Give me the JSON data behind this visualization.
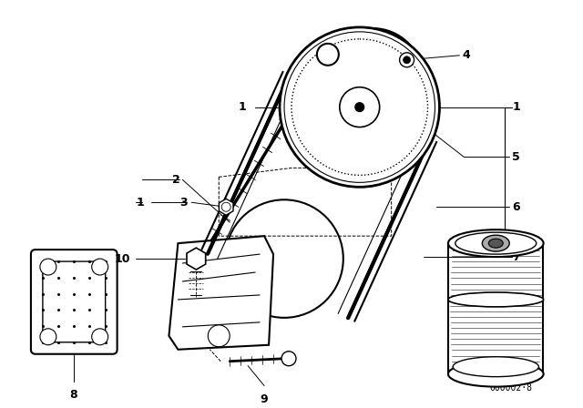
{
  "bg_color": "#ffffff",
  "line_color": "#1a1a1a",
  "watermark": "000002·8",
  "fg": "#000000"
}
